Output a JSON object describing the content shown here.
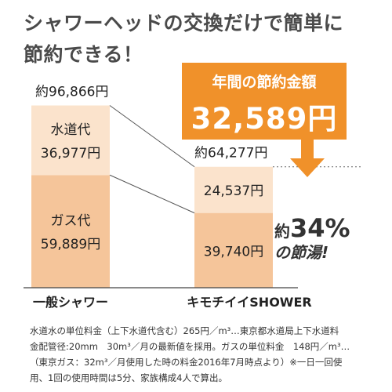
{
  "headline": [
    "シャワーヘッドの交換だけで簡単に",
    "節約できる！"
  ],
  "callout": {
    "label": "年間の節約金額",
    "amount": "32,589円"
  },
  "savings": {
    "prefix": "約",
    "percent": "34%",
    "suffix": "の節湯!"
  },
  "chart_data": {
    "type": "bar",
    "stacked": true,
    "unit": "円",
    "categories": [
      "一般シャワー",
      "キモチイイSHOWER"
    ],
    "totals": [
      96866,
      64277
    ],
    "total_labels": [
      "約96,866円",
      "約64,277円"
    ],
    "series": [
      {
        "name": "ガス代",
        "values": [
          59889,
          39740
        ],
        "labels": [
          "59,889円",
          "39,740円"
        ],
        "color": "#f5c59a"
      },
      {
        "name": "水道代",
        "values": [
          36977,
          24537
        ],
        "labels": [
          "36,977円",
          "24,537円"
        ],
        "color": "#fbe3cc"
      }
    ],
    "series_label_texts": [
      "ガス代",
      "水道代"
    ],
    "colors": {
      "accent": "#f0912a",
      "gas": "#f5c59a",
      "water": "#fbe3cc",
      "connector": "#555555"
    }
  },
  "footnote": [
    "水道水の単位料金（上下水道代含む）265円／m³…東京都水道局上下水道料",
    "金配管径:20mm　30m³／月の最新値を採用。ガスの単位料金　148円／m³…",
    "（東京ガス：32m³／月使用した時の料金2016年7月時点より）※一日一回使",
    "用、1回の使用時間は5分、家族構成4人で算出。"
  ]
}
